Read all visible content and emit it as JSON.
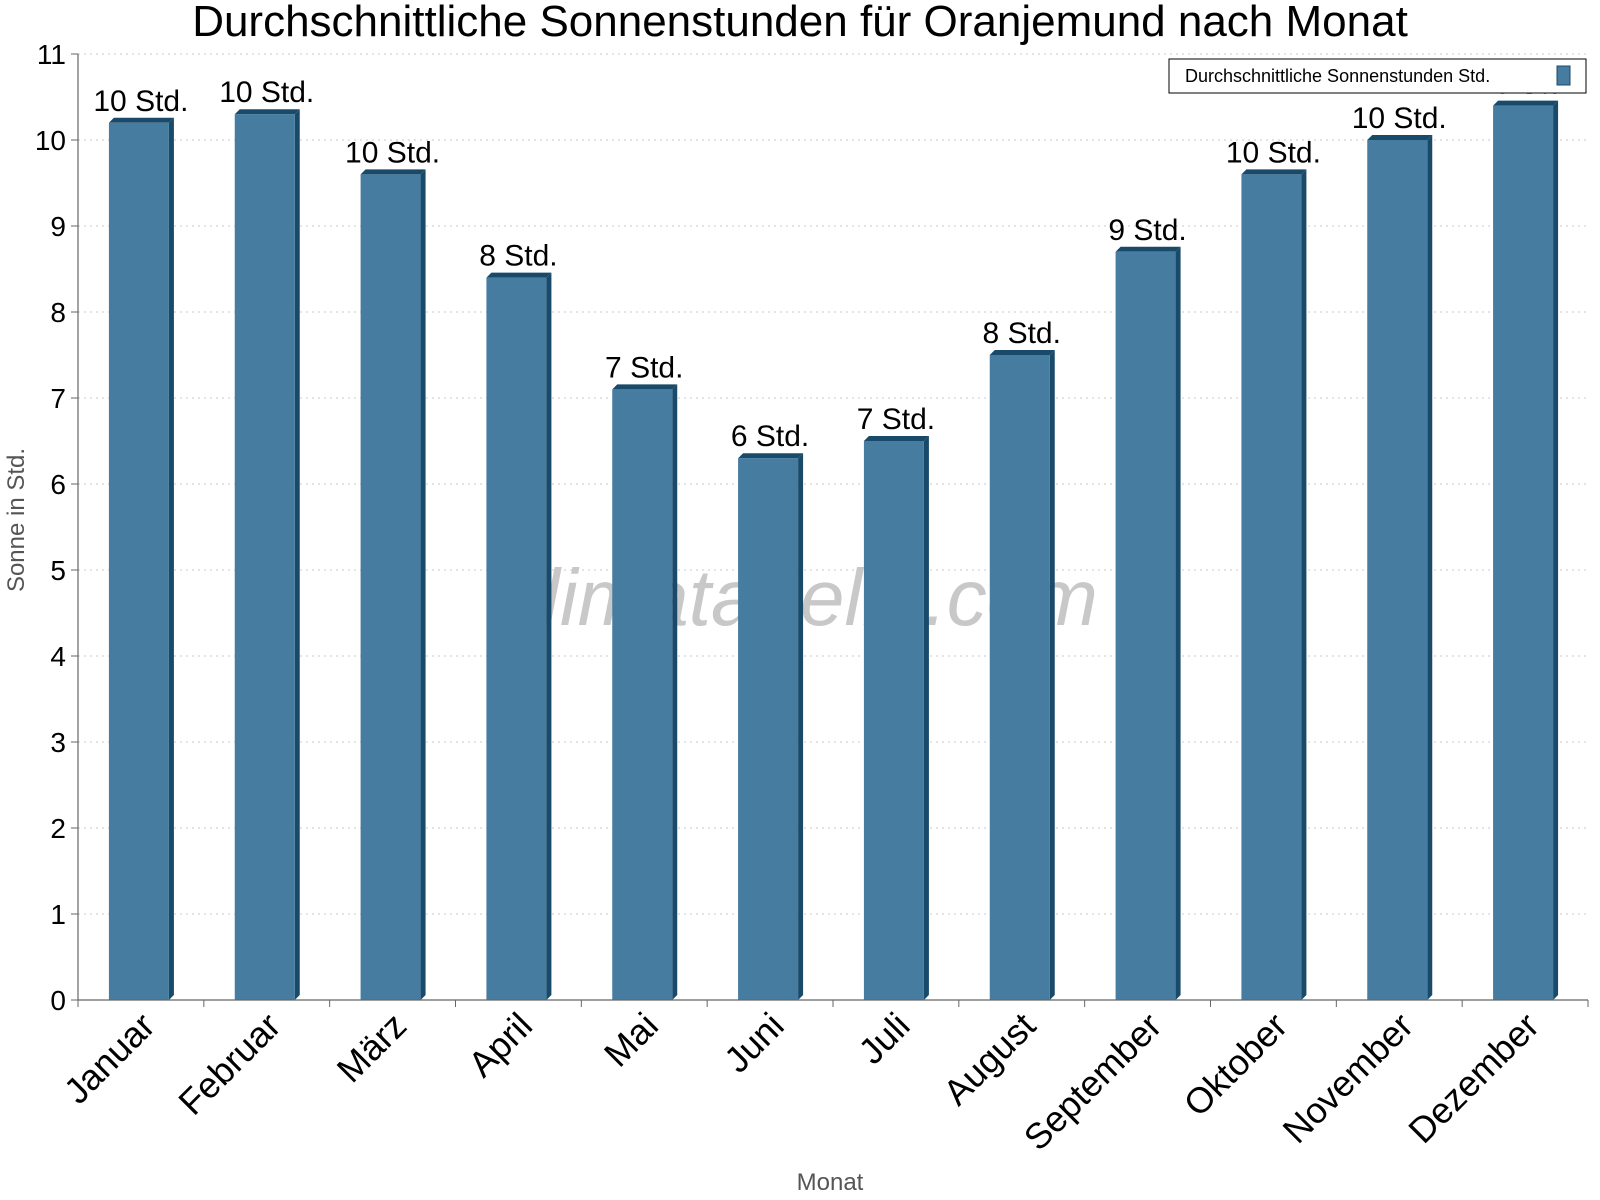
{
  "chart_data": {
    "type": "bar",
    "title": "Durchschnittliche Sonnenstunden für Oranjemund nach Monat",
    "xlabel": "Monat",
    "ylabel": "Sonne in Std.",
    "ylim": [
      0,
      11
    ],
    "yticks": [
      "0",
      "1",
      "2",
      "3",
      "4",
      "5",
      "6",
      "7",
      "8",
      "9",
      "10",
      "11"
    ],
    "grid": true,
    "legend_position": "top-right",
    "categories": [
      "Januar",
      "Februar",
      "März",
      "April",
      "Mai",
      "Juni",
      "Juli",
      "August",
      "September",
      "Oktober",
      "November",
      "Dezember"
    ],
    "series": [
      {
        "name": "Durchschnittliche Sonnenstunden Std.",
        "color": "#467ca0",
        "values": [
          10.2,
          10.3,
          9.6,
          8.4,
          7.1,
          6.3,
          6.5,
          7.5,
          8.7,
          9.6,
          10.0,
          10.4
        ],
        "labels": [
          "10 Std.",
          "10 Std.",
          "10 Std.",
          "8 Std.",
          "7 Std.",
          "6 Std.",
          "7 Std.",
          "8 Std.",
          "9 Std.",
          "10 Std.",
          "10 Std.",
          "10 Std."
        ]
      }
    ]
  },
  "watermark": "klimatabelle.com"
}
